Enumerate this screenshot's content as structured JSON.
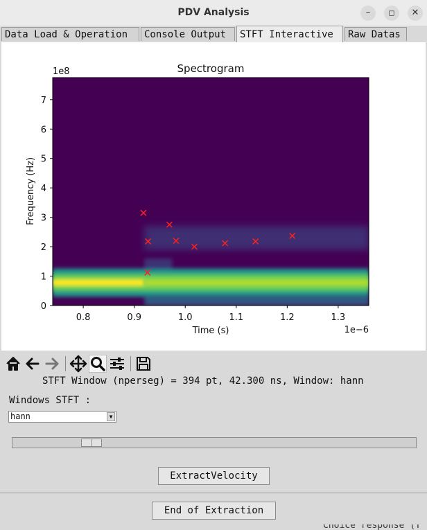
{
  "window": {
    "title": "PDV Analysis"
  },
  "tabs": [
    {
      "label": "Data Load & Operation",
      "active": false
    },
    {
      "label": "Console Output",
      "active": false
    },
    {
      "label": "STFT Interactive",
      "active": true
    },
    {
      "label": "Raw Datas",
      "active": false
    }
  ],
  "toolbar_icons": [
    "home-icon",
    "back-arrow-icon",
    "forward-arrow-icon",
    "pan-icon",
    "zoom-icon",
    "configure-subplots-icon",
    "save-icon"
  ],
  "chart_data": {
    "type": "heatmap",
    "title": "Spectrogram",
    "xlabel": "Time (s)",
    "ylabel": "Frequency (Hz)",
    "x_multiplier": "1e−6",
    "y_multiplier": "1e8",
    "xlim": [
      0.74,
      1.36
    ],
    "ylim": [
      0,
      7.75
    ],
    "xticks": [
      "0.8",
      "0.9",
      "1.0",
      "1.1",
      "1.2",
      "1.3"
    ],
    "yticks": [
      "0",
      "1",
      "2",
      "3",
      "4",
      "5",
      "6",
      "7"
    ],
    "colormap": "viridis",
    "bands": [
      {
        "name": "strong-band",
        "t_start": 0.74,
        "t_end": 1.36,
        "f_center": 0.78
      },
      {
        "name": "velocity-trace",
        "t_start": 0.92,
        "t_end": 1.36,
        "f_center": 2.3
      }
    ],
    "markers": {
      "color": "#ff2020",
      "symbol": "x",
      "points": [
        {
          "x": 0.918,
          "y": 3.15
        },
        {
          "x": 0.927,
          "y": 2.18
        },
        {
          "x": 0.926,
          "y": 1.12
        },
        {
          "x": 0.969,
          "y": 2.75
        },
        {
          "x": 0.982,
          "y": 2.2
        },
        {
          "x": 1.018,
          "y": 2.0
        },
        {
          "x": 1.078,
          "y": 2.12
        },
        {
          "x": 1.138,
          "y": 2.18
        },
        {
          "x": 1.21,
          "y": 2.37
        }
      ]
    }
  },
  "stft_info": "STFT Window (nperseg) = 394 pt, 42.300 ns, Window: hann",
  "window_select": {
    "label": "Windows STFT :",
    "value": "hann"
  },
  "slider": {
    "value_fraction": 0.18
  },
  "buttons": {
    "extract": "ExtractVelocity",
    "end": "End of Extraction"
  },
  "cutoff_text": "Choice response (T"
}
